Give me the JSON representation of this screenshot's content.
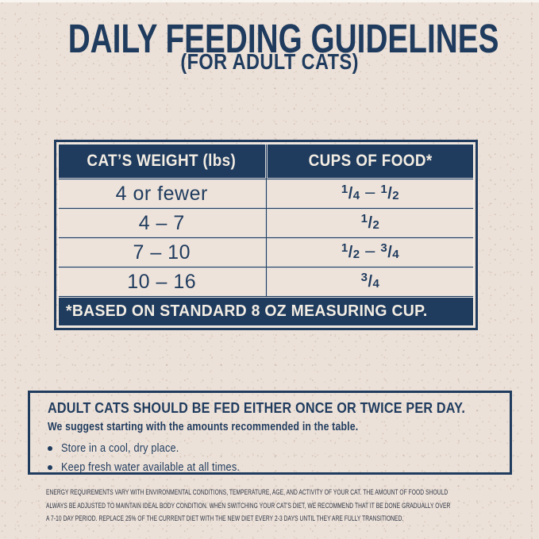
{
  "header": {
    "title": "DAILY FEEDING GUIDELINES",
    "subtitle": "(FOR ADULT CATS)"
  },
  "table": {
    "columns": [
      "CAT’S WEIGHT (lbs)",
      "CUPS OF FOOD*"
    ],
    "rows": [
      {
        "weight": "4 or fewer",
        "cups": [
          {
            "num": "1",
            "den": "4"
          },
          {
            "text": "–"
          },
          {
            "num": "1",
            "den": "2"
          }
        ]
      },
      {
        "weight": "4 – 7",
        "cups": [
          {
            "num": "1",
            "den": "2"
          }
        ]
      },
      {
        "weight": "7 – 10",
        "cups": [
          {
            "num": "1",
            "den": "2"
          },
          {
            "text": "–"
          },
          {
            "num": "3",
            "den": "4"
          }
        ]
      },
      {
        "weight": "10 – 16",
        "cups": [
          {
            "num": "3",
            "den": "4"
          }
        ]
      }
    ],
    "footnote": "*BASED ON STANDARD 8 OZ MEASURING CUP."
  },
  "info_box": {
    "heading": "ADULT CATS SHOULD BE FED EITHER ONCE OR TWICE PER DAY.",
    "subheading": "We suggest starting with the amounts recommended in the table.",
    "bullets": [
      "Store in a cool, dry place.",
      "Keep fresh water available at all times."
    ]
  },
  "fine_print": {
    "lines": [
      "ENERGY REQUIREMENTS VARY WITH ENVIRONMENTAL CONDITIONS, TEMPERATURE, AGE, AND ACTIVITY OF YOUR CAT. THE AMOUNT OF FOOD SHOULD",
      "ALWAYS BE ADJUSTED TO MAINTAIN IDEAL BODY CONDITION. WHEN SWITCHING YOUR CAT'S DIET, WE RECOMMEND THAT IT BE DONE GRADUALLY OVER",
      "A 7-10 DAY PERIOD. REPLACE 25% OF THE CURRENT DIET WITH THE NEW DIET EVERY 2-3 DAYS UNTIL THEY ARE FULLY TRANSITIONED."
    ]
  },
  "colors": {
    "navy": "#1f3b5e",
    "background": "#ece1d8",
    "cream": "#f3ede3",
    "fine_print": "#2a3142"
  }
}
